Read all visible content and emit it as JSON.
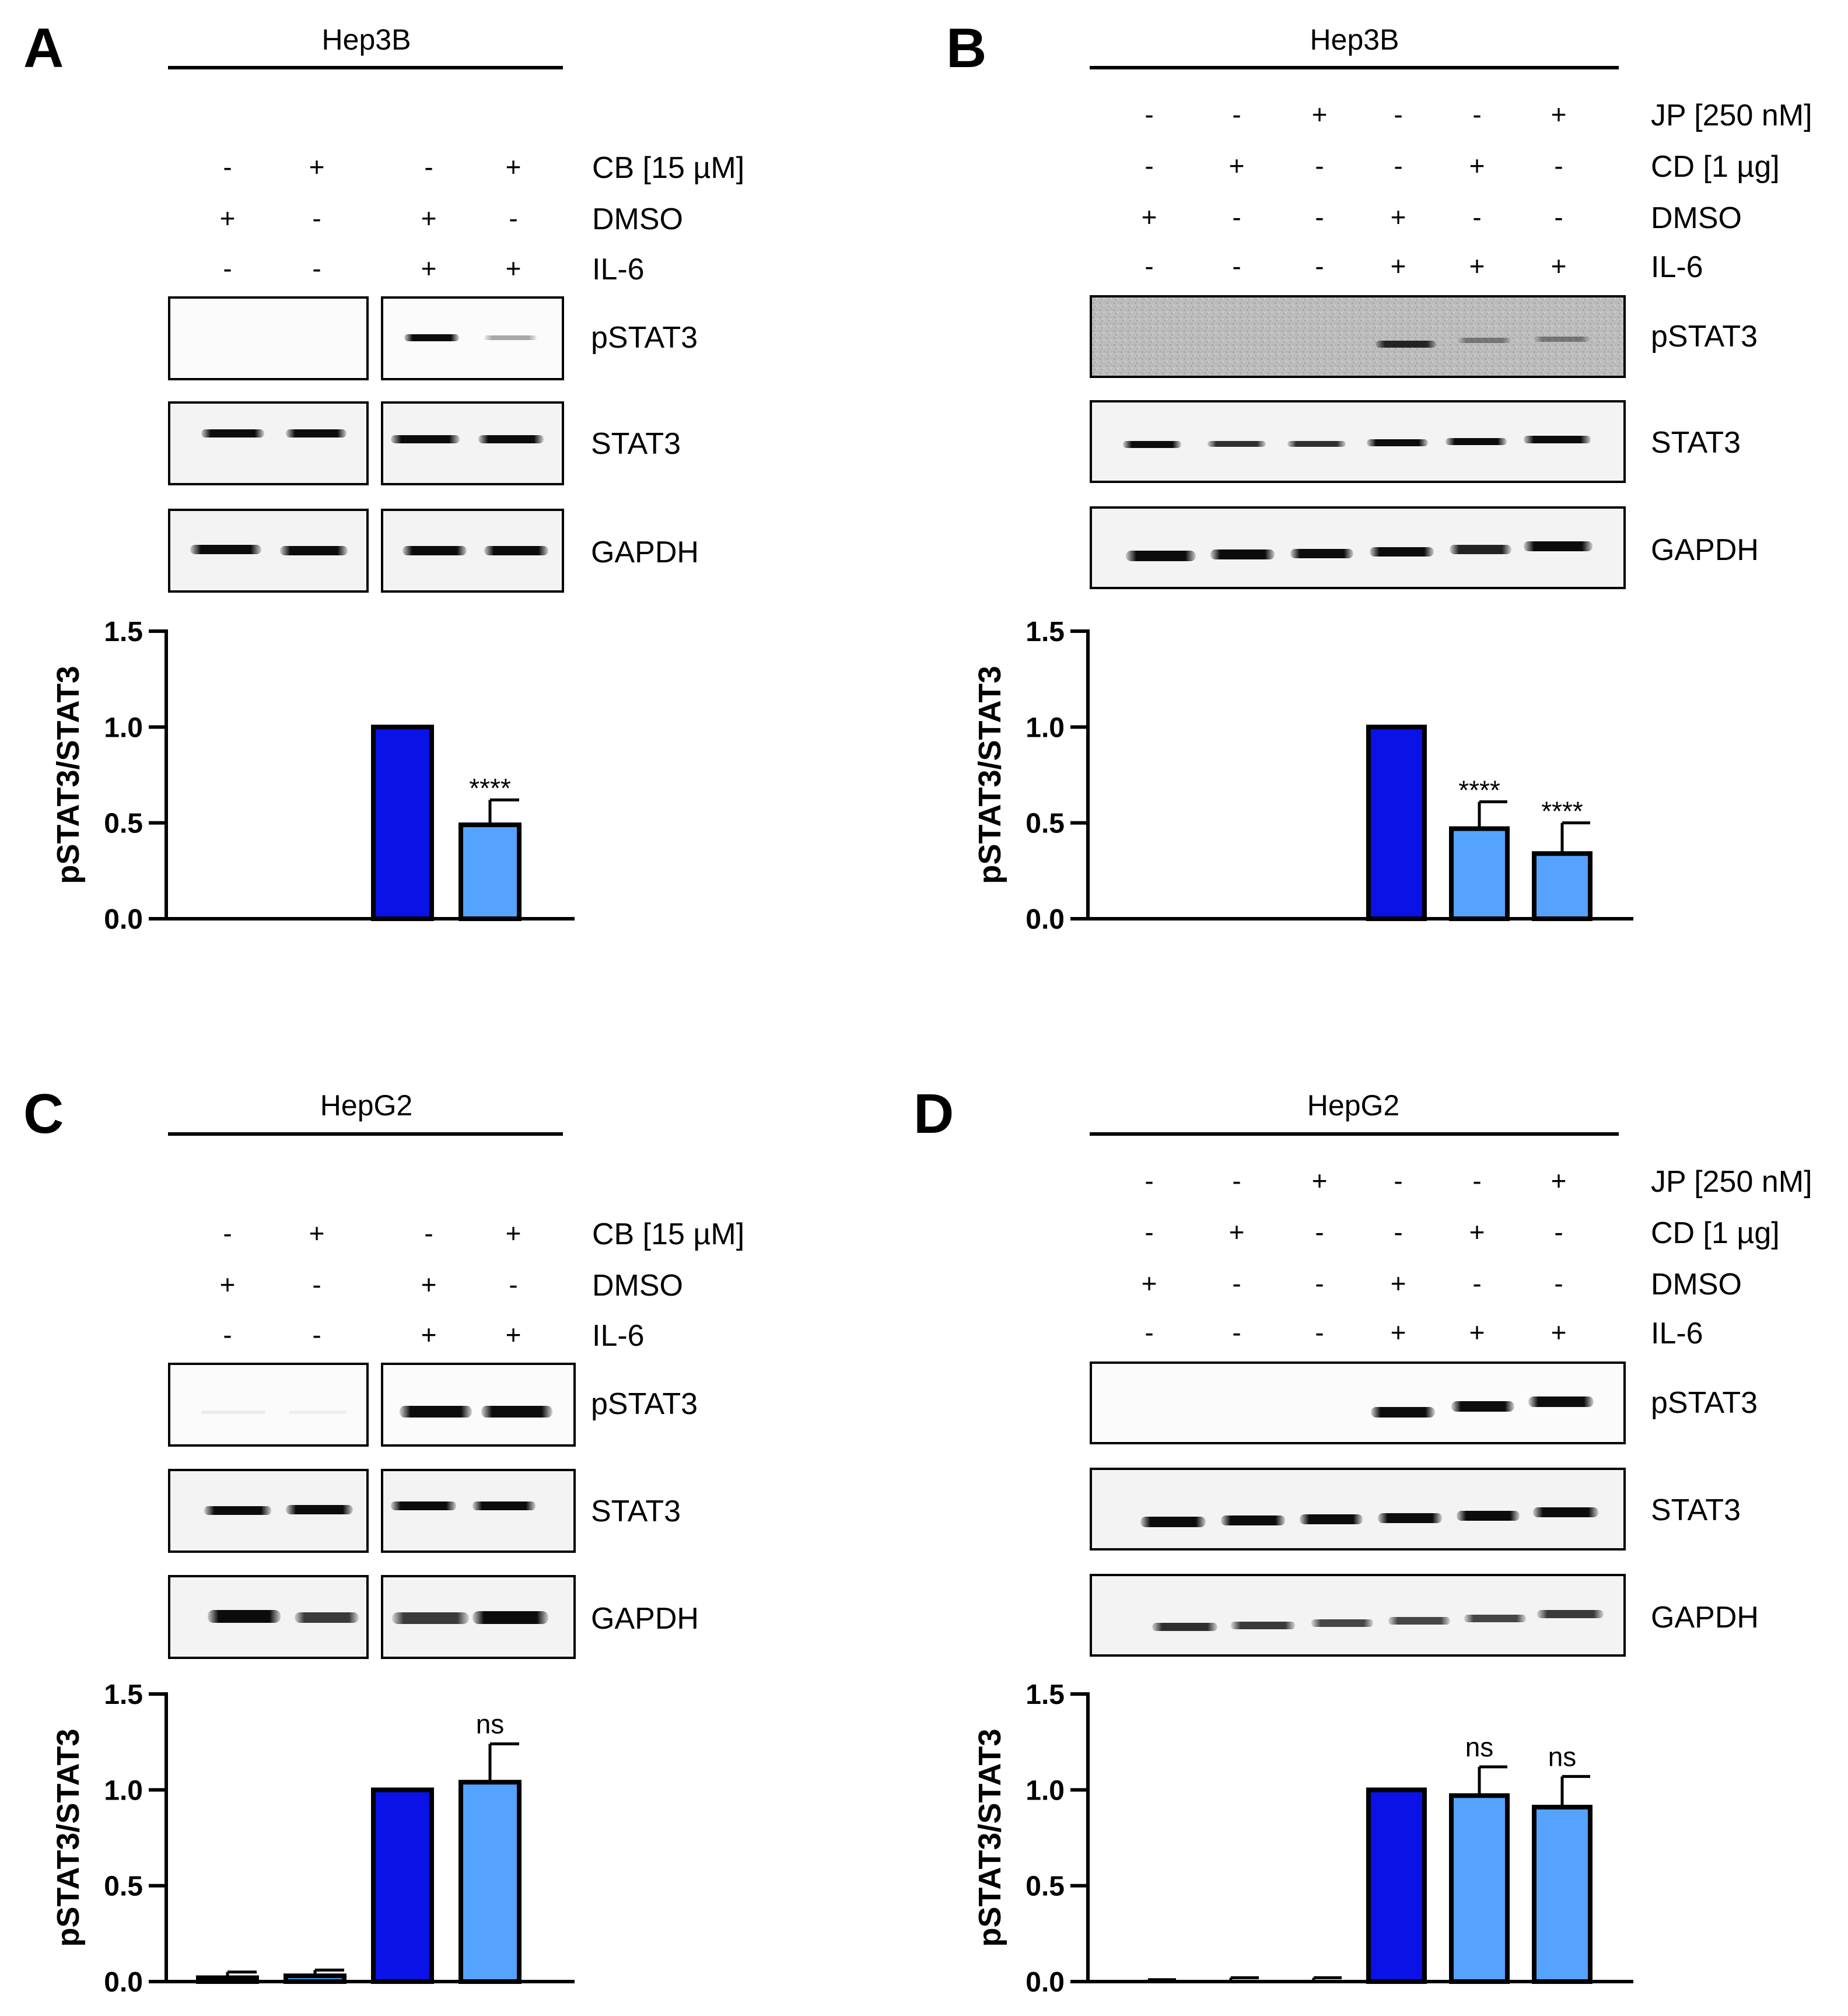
{
  "panels": [
    {
      "id": "A",
      "label": "A",
      "cell_line": "Hep3B",
      "treatments": [
        {
          "name": "CB [15 µM]",
          "signs": [
            "-",
            "+",
            "-",
            "+"
          ]
        },
        {
          "name": "DMSO",
          "signs": [
            "+",
            "-",
            "+",
            "-"
          ]
        },
        {
          "name": "IL-6",
          "signs": [
            "-",
            "-",
            "+",
            "+"
          ]
        }
      ],
      "blots": [
        "pSTAT3",
        "STAT3",
        "GAPDH"
      ],
      "lanes": 4
    },
    {
      "id": "B",
      "label": "B",
      "cell_line": "Hep3B",
      "treatments": [
        {
          "name": "JP [250 nM]",
          "signs": [
            "-",
            "-",
            "+",
            "-",
            "-",
            "+"
          ]
        },
        {
          "name": "CD [1 µg]",
          "signs": [
            "-",
            "+",
            "-",
            "-",
            "+",
            "-"
          ]
        },
        {
          "name": "DMSO",
          "signs": [
            "+",
            "-",
            "-",
            "+",
            "-",
            "-"
          ]
        },
        {
          "name": "IL-6",
          "signs": [
            "-",
            "-",
            "-",
            "+",
            "+",
            "+"
          ]
        }
      ],
      "blots": [
        "pSTAT3",
        "STAT3",
        "GAPDH"
      ],
      "lanes": 6
    },
    {
      "id": "C",
      "label": "C",
      "cell_line": "HepG2",
      "treatments": [
        {
          "name": "CB [15 µM]",
          "signs": [
            "-",
            "+",
            "-",
            "+"
          ]
        },
        {
          "name": "DMSO",
          "signs": [
            "+",
            "-",
            "+",
            "-"
          ]
        },
        {
          "name": "IL-6",
          "signs": [
            "-",
            "-",
            "+",
            "+"
          ]
        }
      ],
      "blots": [
        "pSTAT3",
        "STAT3",
        "GAPDH"
      ],
      "lanes": 4
    },
    {
      "id": "D",
      "label": "D",
      "cell_line": "HepG2",
      "treatments": [
        {
          "name": "JP [250 nM]",
          "signs": [
            "-",
            "-",
            "+",
            "-",
            "-",
            "+"
          ]
        },
        {
          "name": "CD [1 µg]",
          "signs": [
            "-",
            "+",
            "-",
            "-",
            "+",
            "-"
          ]
        },
        {
          "name": "DMSO",
          "signs": [
            "+",
            "-",
            "-",
            "+",
            "-",
            "-"
          ]
        },
        {
          "name": "IL-6",
          "signs": [
            "-",
            "-",
            "-",
            "+",
            "+",
            "+"
          ]
        }
      ],
      "blots": [
        "pSTAT3",
        "STAT3",
        "GAPDH"
      ],
      "lanes": 6
    }
  ],
  "colors": {
    "control_bar": "#0a12e8",
    "treated_bar": "#55a3ff",
    "axis": "#000000"
  },
  "chart_data": [
    {
      "panel": "A",
      "type": "bar",
      "ylabel": "pSTAT3/STAT3",
      "ylim": [
        0,
        1.5
      ],
      "yticks": [
        "0.0",
        "0.5",
        "1.0",
        "1.5"
      ],
      "values": [
        0,
        0,
        1.0,
        0.49
      ],
      "errors": [
        0,
        0,
        0,
        0.13
      ],
      "annotations": [
        "",
        "",
        "",
        "****"
      ],
      "bar_colors": [
        "treated",
        "treated",
        "control",
        "treated"
      ]
    },
    {
      "panel": "B",
      "type": "bar",
      "ylabel": "pSTAT3/STAT3",
      "ylim": [
        0,
        1.5
      ],
      "yticks": [
        "0.0",
        "0.5",
        "1.0",
        "1.5"
      ],
      "values": [
        0,
        0,
        0,
        1.0,
        0.47,
        0.34
      ],
      "errors": [
        0,
        0,
        0,
        0,
        0.14,
        0.16
      ],
      "annotations": [
        "",
        "",
        "",
        "",
        "****",
        "****"
      ],
      "bar_colors": [
        "treated",
        "treated",
        "treated",
        "control",
        "treated",
        "treated"
      ]
    },
    {
      "panel": "C",
      "type": "bar",
      "ylabel": "pSTAT3/STAT3",
      "ylim": [
        0,
        1.5
      ],
      "yticks": [
        "0.0",
        "0.5",
        "1.0",
        "1.5"
      ],
      "values": [
        0.02,
        0.03,
        1.0,
        1.04
      ],
      "errors": [
        0.03,
        0.03,
        0,
        0.2
      ],
      "annotations": [
        "",
        "",
        "",
        "ns"
      ],
      "bar_colors": [
        "treated",
        "treated",
        "control",
        "treated"
      ]
    },
    {
      "panel": "D",
      "type": "bar",
      "ylabel": "pSTAT3/STAT3",
      "ylim": [
        0,
        1.5
      ],
      "yticks": [
        "0.0",
        "0.5",
        "1.0",
        "1.5"
      ],
      "values": [
        0,
        0,
        0,
        1.0,
        0.97,
        0.91
      ],
      "errors": [
        0.01,
        0.02,
        0.02,
        0,
        0.15,
        0.16
      ],
      "annotations": [
        "",
        "",
        "",
        "",
        "ns",
        "ns"
      ],
      "bar_colors": [
        "treated",
        "treated",
        "treated",
        "control",
        "treated",
        "treated"
      ]
    }
  ]
}
